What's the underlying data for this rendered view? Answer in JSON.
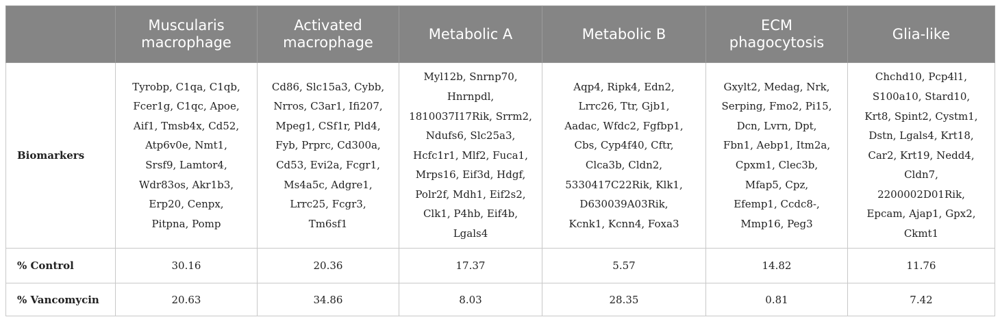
{
  "table": {
    "columns": [
      "Muscularis macrophage",
      "Activated macrophage",
      "Metabolic A",
      "Metabolic B",
      "ECM phagocytosis",
      "Glia-like"
    ],
    "rows": [
      {
        "label": "Biomarkers",
        "cells": [
          [
            "Tyrobp, C1qa, C1qb,",
            "Fcer1g, C1qc, Apoe,",
            "Aif1, Tmsb4x, Cd52,",
            "Atp6v0e, Nmt1,",
            "Srsf9, Lamtor4,",
            "Wdr83os, Akr1b3,",
            "Erp20, Cenpx,",
            "Pitpna, Pomp"
          ],
          [
            "Cd86, Slc15a3, Cybb,",
            "Nrros, C3ar1, Ifi207,",
            "Mpeg1, CSf1r, Pld4,",
            "Fyb, Prprc, Cd300a,",
            "Cd53, Evi2a, Fcgr1,",
            "Ms4a5c, Adgre1,",
            "Lrrc25, Fcgr3,",
            "Tm6sf1"
          ],
          [
            "Myl12b, Snrnp70,",
            "Hnrnpdl,",
            "1810037I17Rik, Srrm2,",
            "Ndufs6, Slc25a3,",
            "Hcfc1r1, Mlf2, Fuca1,",
            "Mrps16, Eif3d, Hdgf,",
            "Polr2f, Mdh1, Eif2s2,",
            "Clk1, P4hb, Eif4b,",
            "Lgals4"
          ],
          [
            "Aqp4, Ripk4, Edn2,",
            "Lrrc26, Ttr, Gjb1,",
            "Aadac, Wfdc2, Fgfbp1,",
            "Cbs, Cyp4f40, Cftr,",
            "Clca3b, Cldn2,",
            "5330417C22Rik, Klk1,",
            "D630039A03Rik,",
            "Kcnk1, Kcnn4, Foxa3"
          ],
          [
            "Gxylt2, Medag, Nrk,",
            "Serping, Fmo2, Pi15,",
            "Dcn, Lvrn, Dpt,",
            "Fbn1, Aebp1, Itm2a,",
            "Cpxm1, Clec3b,",
            "Mfap5, Cpz,",
            "Efemp1, Ccdc8-,",
            "Mmp16, Peg3"
          ],
          [
            "Chchd10, Pcp4l1,",
            "S100a10, Stard10,",
            "Krt8, Spint2, Cystm1,",
            "Dstn, Lgals4, Krt18,",
            "Car2, Krt19, Nedd4,",
            "Cldn7,",
            "2200002D01Rik,",
            "Epcam, Ajap1, Gpx2,",
            "Ckmt1"
          ]
        ]
      },
      {
        "label": "% Control",
        "cells": [
          30.16,
          20.36,
          17.37,
          5.57,
          14.82,
          11.76
        ]
      },
      {
        "label": "% Vancomycin",
        "cells": [
          20.63,
          34.86,
          8.03,
          28.35,
          0.81,
          7.42
        ]
      }
    ]
  }
}
